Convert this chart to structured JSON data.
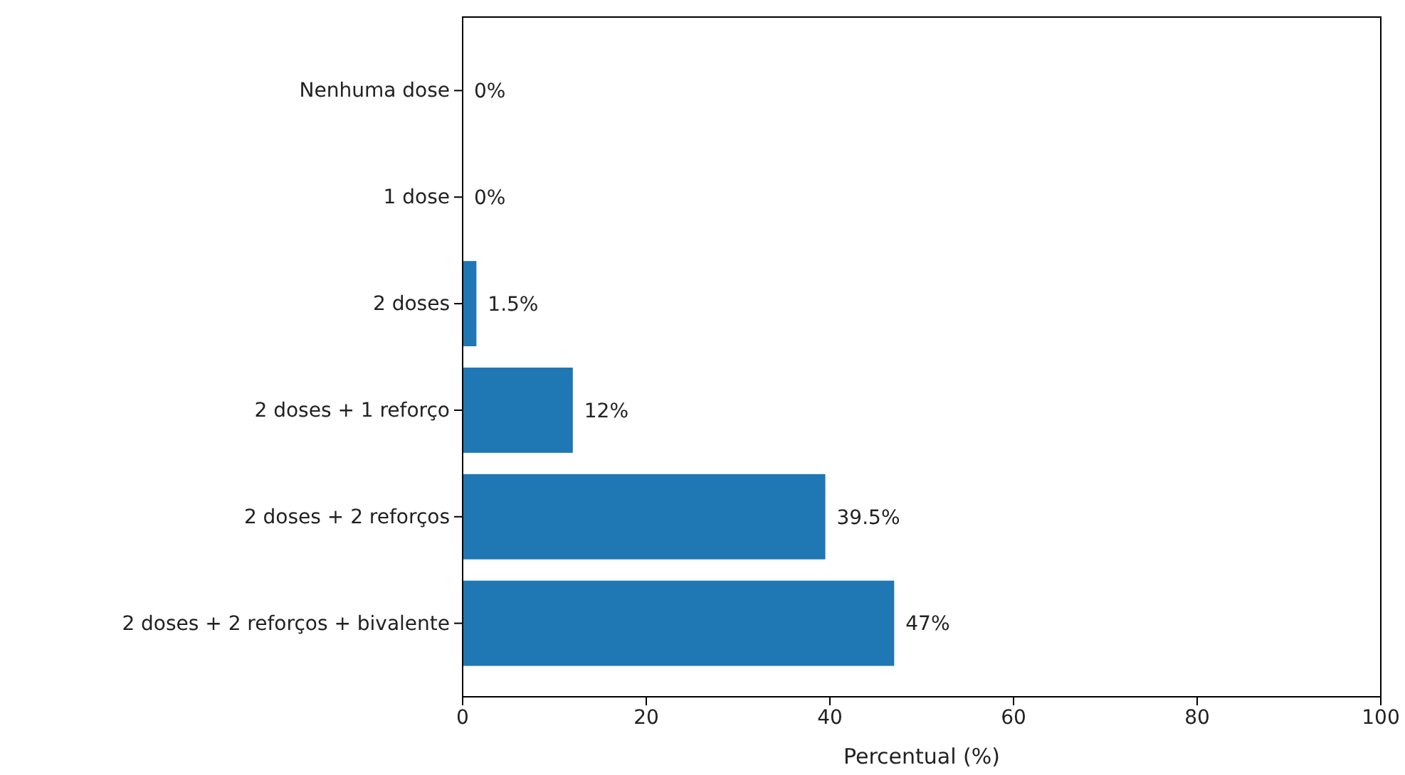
{
  "chart_data": {
    "type": "bar",
    "orientation": "horizontal",
    "xlabel": "Percentual (%)",
    "categories": [
      "Nenhuma dose",
      "1 dose",
      "2 doses",
      "2 doses + 1 reforço",
      "2 doses + 2 reforços",
      "2 doses + 2 reforços + bivalente"
    ],
    "values": [
      0,
      0,
      1.5,
      12,
      39.5,
      47
    ],
    "value_labels": [
      "0%",
      "0%",
      "1.5%",
      "12%",
      "39.5%",
      "47%"
    ],
    "color": "#1f77b4",
    "xlim": [
      0,
      100
    ],
    "xticks": [
      0,
      20,
      40,
      60,
      80,
      100
    ]
  }
}
